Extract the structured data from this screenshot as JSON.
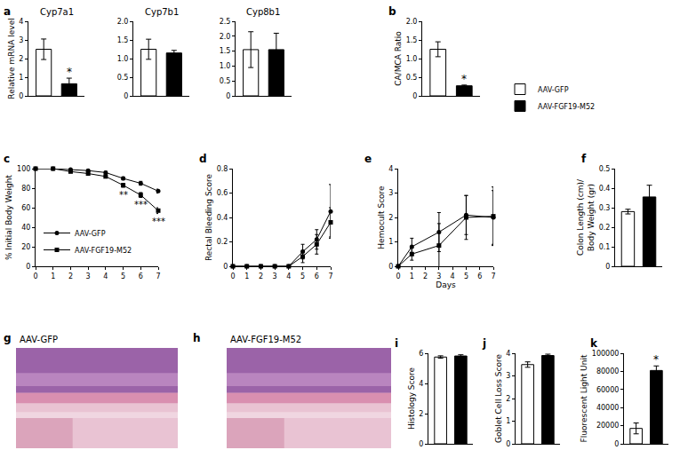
{
  "chart_data": [
    {
      "type": "bar",
      "label": "a",
      "title": "Cyp7a1",
      "ylabel": "Relative mRNA level",
      "ylim": [
        0,
        4
      ],
      "yticks": [
        0,
        1,
        2,
        3,
        4
      ],
      "tick_labels": "y",
      "series": [
        {
          "name": "AAV-GFP",
          "color": "#ffffff",
          "values": [
            2.5
          ],
          "errors": [
            0.55
          ]
        },
        {
          "name": "AAV-FGF19-M52",
          "color": "#000000",
          "values": [
            0.65
          ],
          "errors": [
            0.3
          ]
        }
      ],
      "annotations": [
        {
          "series": "AAV-FGF19-M52",
          "text": "*"
        }
      ]
    },
    {
      "type": "bar",
      "title": "Cyp7b1",
      "ylim": [
        0,
        2
      ],
      "yticks": [
        0,
        0.5,
        {
          "value": 1,
          "label": "1.0"
        },
        1.5,
        {
          "value": 2,
          "label": "2.0"
        }
      ],
      "tick_labels": "y",
      "series": [
        {
          "name": "AAV-GFP",
          "color": "#ffffff",
          "values": [
            1.25
          ],
          "errors": [
            0.27
          ]
        },
        {
          "name": "AAV-FGF19-M52",
          "color": "#000000",
          "values": [
            1.15
          ],
          "errors": [
            0.07
          ]
        }
      ]
    },
    {
      "type": "bar",
      "title": "Cyp8b1",
      "ylim": [
        0,
        2.5
      ],
      "yticks": [
        0,
        0.5,
        {
          "value": 1,
          "label": "1.0"
        },
        1.5,
        {
          "value": 2,
          "label": "2.0"
        },
        2.5
      ],
      "tick_labels": "y",
      "series": [
        {
          "name": "AAV-GFP",
          "color": "#ffffff",
          "values": [
            1.55
          ],
          "errors": [
            0.6
          ]
        },
        {
          "name": "AAV-FGF19-M52",
          "color": "#000000",
          "values": [
            1.55
          ],
          "errors": [
            0.55
          ]
        }
      ]
    },
    {
      "type": "bar",
      "label": "b",
      "ylabel": "CA/MCA Ratio",
      "legend": "right",
      "ylim": [
        0,
        2
      ],
      "yticks": [
        0,
        0.5,
        {
          "value": 1,
          "label": "1.0"
        },
        1.5,
        {
          "value": 2,
          "label": "2.0"
        }
      ],
      "tick_labels": "y",
      "series": [
        {
          "name": "AAV-GFP",
          "color": "#ffffff",
          "values": [
            1.25
          ],
          "errors": [
            0.2
          ]
        },
        {
          "name": "AAV-FGF19-M52",
          "color": "#000000",
          "values": [
            0.27
          ],
          "errors": [
            0.02
          ]
        }
      ],
      "annotations": [
        {
          "series": "AAV-FGF19-M52",
          "text": "*"
        }
      ]
    },
    {
      "type": "line",
      "label": "c",
      "ylabel": "% Initial Body Weight",
      "legend": "lower left",
      "x": [
        0,
        1,
        2,
        3,
        4,
        5,
        6,
        7
      ],
      "xlim": [
        0,
        7
      ],
      "xticks": [
        0,
        1,
        2,
        3,
        4,
        5,
        6,
        7
      ],
      "ylim": [
        0,
        100
      ],
      "yticks": [
        0,
        20,
        40,
        60,
        80,
        100
      ],
      "series": [
        {
          "name": "AAV-GFP",
          "color": "#000000",
          "marker": "circle",
          "line_style": "solid",
          "values": [
            100,
            100,
            99,
            98,
            96,
            90,
            85,
            77
          ],
          "errors": [
            0,
            0.5,
            0.8,
            1,
            1.2,
            1.5,
            2,
            2
          ]
        },
        {
          "name": "AAV-FGF19-M52",
          "color": "#000000",
          "marker": "square",
          "line_style": "solid",
          "values": [
            100,
            100,
            97,
            95,
            92,
            83,
            73,
            57
          ],
          "errors": [
            0,
            0.5,
            0.8,
            1,
            1.5,
            2,
            2.5,
            3
          ]
        }
      ],
      "annotations": [
        {
          "x": 5,
          "text": "**"
        },
        {
          "x": 6,
          "text": "***"
        },
        {
          "x": 7,
          "text": "***"
        }
      ]
    },
    {
      "type": "line",
      "label": "d",
      "ylabel": "Rectal Bleeding Score",
      "x": [
        0,
        1,
        2,
        3,
        4,
        5,
        6,
        7
      ],
      "xlim": [
        0,
        7
      ],
      "xticks": [
        0,
        1,
        2,
        3,
        4,
        5,
        6,
        7
      ],
      "ylim": [
        0,
        0.8
      ],
      "yticks": [
        0,
        0.2,
        0.4,
        0.6,
        0.8
      ],
      "series": [
        {
          "name": "AAV-GFP",
          "color": "#000000",
          "marker": "circle",
          "line_style": "solid",
          "values": [
            0,
            0,
            0,
            0,
            0,
            0.12,
            0.22,
            0.45
          ],
          "errors": [
            0,
            0,
            0,
            0,
            0,
            0.06,
            0.08,
            0.22
          ]
        },
        {
          "name": "AAV-FGF19-M52",
          "color": "#000000",
          "marker": "square",
          "line_style": "solid",
          "values": [
            0,
            0,
            0,
            0,
            0,
            0.08,
            0.18,
            0.36
          ],
          "errors": [
            0,
            0,
            0,
            0,
            0,
            0.05,
            0.08,
            0.12
          ]
        }
      ]
    },
    {
      "type": "line",
      "label": "e",
      "ylabel": "Hemocult Score",
      "xlabel": "Days",
      "x": [
        0,
        1,
        3,
        5,
        7
      ],
      "xlim": [
        0,
        7
      ],
      "xticks": [
        0,
        1,
        2,
        3,
        4,
        5,
        6,
        7
      ],
      "ylim": [
        0,
        4
      ],
      "yticks": [
        0,
        1,
        2,
        3,
        4
      ],
      "series": [
        {
          "name": "AAV-GFP",
          "color": "#000000",
          "marker": "circle",
          "line_style": "solid",
          "values": [
            0,
            0.8,
            1.4,
            2.1,
            2.0
          ],
          "errors": [
            0,
            0.35,
            0.8,
            0.8,
            1.1
          ]
        },
        {
          "name": "AAV-FGF19-M52",
          "color": "#000000",
          "marker": "square",
          "line_style": "solid",
          "values": [
            0,
            0.5,
            0.85,
            2.0,
            2.05
          ],
          "errors": [
            0,
            0.25,
            0.9,
            0.9,
            1.2
          ]
        }
      ]
    },
    {
      "type": "bar",
      "label": "f",
      "ylabel": "Colon Length (cm)/\nBody Weight (gr)",
      "ylim": [
        0,
        0.5
      ],
      "yticks": [
        0,
        0.1,
        0.2,
        0.3,
        0.4,
        0.5
      ],
      "tick_labels": "y",
      "series": [
        {
          "name": "AAV-GFP",
          "color": "#ffffff",
          "values": [
            0.28
          ],
          "errors": [
            0.012
          ]
        },
        {
          "name": "AAV-FGF19-M52",
          "color": "#000000",
          "values": [
            0.355
          ],
          "errors": [
            0.06
          ]
        }
      ]
    },
    {
      "type": "image",
      "label": "g",
      "title": "AAV-GFP"
    },
    {
      "type": "image",
      "label": "h",
      "title": "AAV-FGF19-M52"
    },
    {
      "type": "bar",
      "label": "i",
      "ylabel": "Histology Score",
      "ylim": [
        0,
        6
      ],
      "yticks": [
        0,
        2,
        4,
        6
      ],
      "tick_labels": "y",
      "series": [
        {
          "name": "AAV-GFP",
          "color": "#ffffff",
          "values": [
            5.75
          ],
          "errors": [
            0.08
          ]
        },
        {
          "name": "AAV-FGF19-M52",
          "color": "#000000",
          "values": [
            5.82
          ],
          "errors": [
            0.08
          ]
        }
      ]
    },
    {
      "type": "bar",
      "label": "j",
      "ylabel": "Goblet Cell Loss Score",
      "ylim": [
        0,
        4
      ],
      "yticks": [
        0,
        1,
        2,
        3,
        4
      ],
      "tick_labels": "y",
      "series": [
        {
          "name": "AAV-GFP",
          "color": "#ffffff",
          "values": [
            3.5
          ],
          "errors": [
            0.12
          ]
        },
        {
          "name": "AAV-FGF19-M52",
          "color": "#000000",
          "values": [
            3.9
          ],
          "errors": [
            0.06
          ]
        }
      ]
    },
    {
      "type": "bar",
      "label": "k",
      "ylabel": "Fluorescent Light Unit",
      "ylim": [
        0,
        100000
      ],
      "yticks": [
        0,
        20000,
        40000,
        60000,
        80000,
        100000
      ],
      "tick_labels": "y",
      "series": [
        {
          "name": "AAV-GFP",
          "color": "#ffffff",
          "values": [
            17000
          ],
          "errors": [
            6000
          ]
        },
        {
          "name": "AAV-FGF19-M52",
          "color": "#000000",
          "values": [
            81000
          ],
          "errors": [
            5000
          ]
        }
      ],
      "annotations": [
        {
          "series": "AAV-FGF19-M52",
          "text": "*"
        }
      ]
    }
  ]
}
